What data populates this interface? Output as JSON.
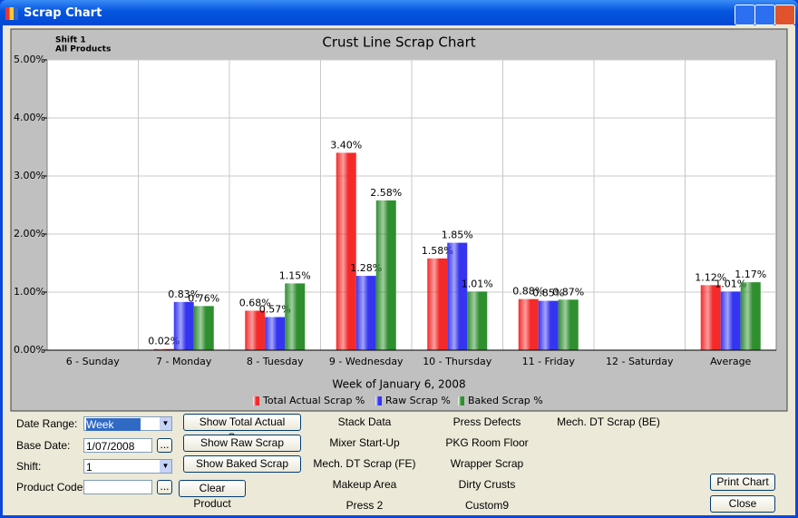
{
  "window": {
    "title": "Scrap Chart"
  },
  "chart": {
    "type": "bar",
    "title": "Crust Line Scrap Chart",
    "subtitle_lines": [
      "Shift 1",
      "All Products"
    ],
    "x_label": "Week of January  6, 2008",
    "categories": [
      "6 - Sunday",
      "7 - Monday",
      "8 - Tuesday",
      "9 - Wednesday",
      "10 - Thursday",
      "11 - Friday",
      "12 - Saturday",
      "Average"
    ],
    "series": [
      {
        "name": "Total Actual Scrap %",
        "color": "#f42a2a",
        "values": [
          null,
          0.02,
          0.68,
          3.4,
          1.58,
          0.88,
          null,
          1.12
        ],
        "value_labels": [
          null,
          "0.02%",
          "0.68%",
          "3.40%",
          "1.58%",
          "0.88%",
          null,
          "1.12%"
        ]
      },
      {
        "name": "Raw Scrap %",
        "color": "#3535f0",
        "values": [
          null,
          0.83,
          0.57,
          1.28,
          1.85,
          0.85,
          null,
          1.01
        ],
        "value_labels": [
          null,
          "0.83%",
          "0.57%",
          "1.28%",
          "1.85%",
          "0.85%",
          null,
          "1.01%"
        ]
      },
      {
        "name": "Baked Scrap %",
        "color": "#2f8f2f",
        "values": [
          null,
          0.76,
          1.15,
          2.58,
          1.01,
          0.87,
          null,
          1.17
        ],
        "value_labels": [
          null,
          "0.76%",
          "1.15%",
          "2.58%",
          "1.01%",
          "0.87%",
          null,
          "1.17%"
        ]
      }
    ],
    "ylim": [
      0,
      5
    ],
    "yticks": [
      {
        "value": 0,
        "label": "0.00%"
      },
      {
        "value": 1,
        "label": "1.00%"
      },
      {
        "value": 2,
        "label": "2.00%"
      },
      {
        "value": 3,
        "label": "3.00%"
      },
      {
        "value": 4,
        "label": "4.00%"
      },
      {
        "value": 5,
        "label": "5.00%"
      }
    ],
    "grid": true
  },
  "controls": {
    "date_range": {
      "label": "Date Range:",
      "value": "Week"
    },
    "base_date": {
      "label": "Base Date:",
      "value": "1/07/2008"
    },
    "shift": {
      "label": "Shift:",
      "value": "1"
    },
    "product_code": {
      "label": "Product Code:"
    },
    "browse_button": "...",
    "buttons": [
      "Show Total Actual Scrap",
      "Show Raw Scrap",
      "Show Baked Scrap",
      "Clear Product",
      "Print Chart",
      "Close"
    ],
    "reports": [
      [
        "Stack Data",
        "Mixer Start-Up",
        "Mech. DT Scrap (FE)",
        "Makeup Area",
        "Press 2"
      ],
      [
        "Press Defects",
        "PKG Room Floor",
        "Wrapper Scrap",
        "Dirty Crusts",
        "Custom9"
      ],
      [
        "Mech. DT Scrap (BE)"
      ]
    ]
  }
}
